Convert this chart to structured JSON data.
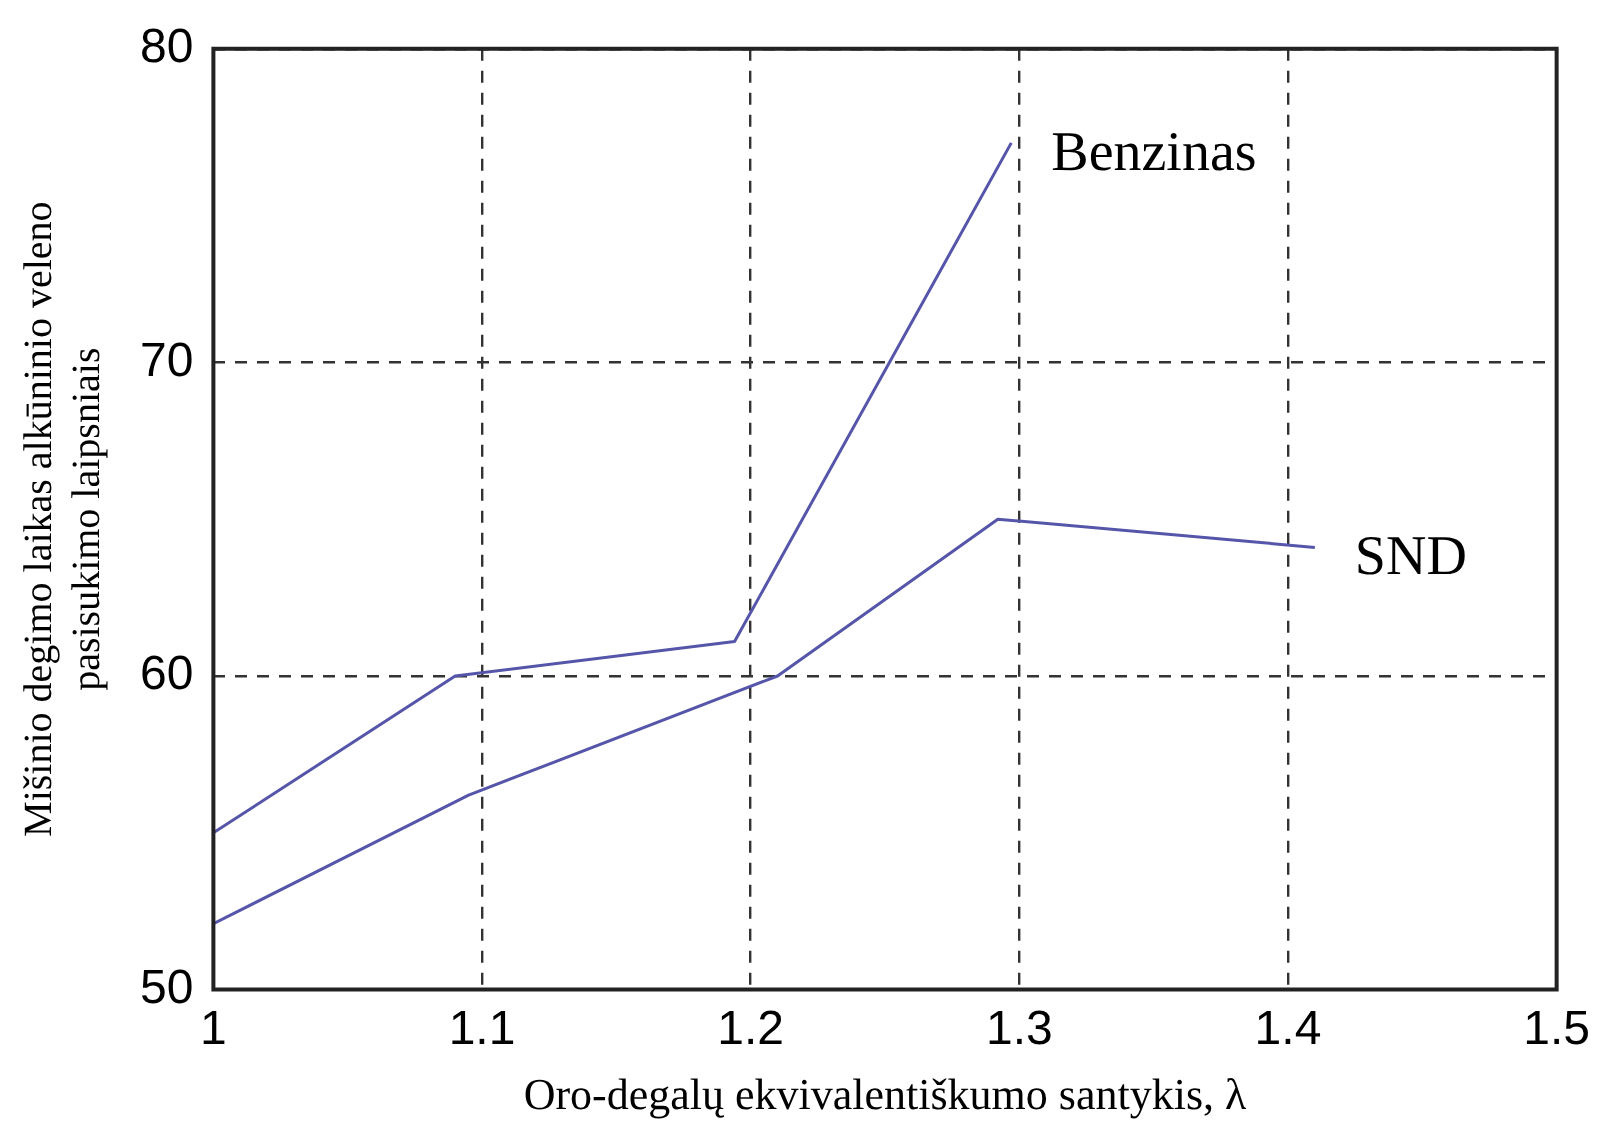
{
  "chart_data": {
    "type": "line",
    "xlabel": "Oro-degalų ekvivalentiškumo santykis, λ",
    "ylabel": "Mišinio degimo laikas alkūninio veleno\npasisukimo laipsniais",
    "xlim": [
      1,
      1.5
    ],
    "xticks": [
      1,
      1.1,
      1.2,
      1.3,
      1.4,
      1.5
    ],
    "ylim": [
      50,
      80
    ],
    "yticks": [
      50,
      60,
      70,
      80
    ],
    "grid": true,
    "legend": false,
    "marker": "none",
    "line_style": "solid",
    "series": [
      {
        "name": "Benzinas",
        "color": "#5555aa",
        "x": [
          1,
          1.09,
          1.194,
          1.297
        ],
        "values": [
          55,
          60,
          61.1,
          77
        ]
      },
      {
        "name": "SND",
        "color": "#5555aa",
        "x": [
          1,
          1.095,
          1.21,
          1.292,
          1.41
        ],
        "values": [
          52.1,
          56.2,
          60,
          65,
          64.1
        ]
      }
    ]
  }
}
